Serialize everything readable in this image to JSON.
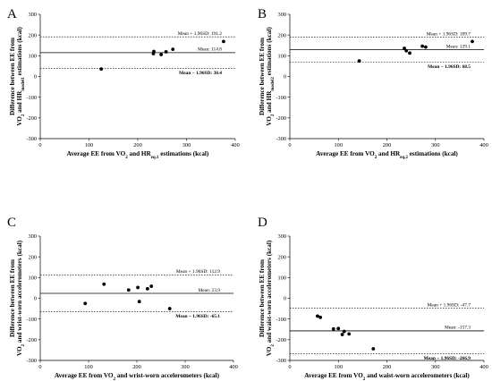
{
  "chart_data": [
    {
      "panel": "A",
      "type": "scatter",
      "xlabel": "Average EE from VO₂ and HRₑq.1 estimations (kcal)",
      "ylabel": "Difference between EE from VO₂ and HRmodel1 estimations (kcal)",
      "xlabel_parts": [
        {
          "t": "Average EE from VO"
        },
        {
          "t": "2",
          "sub": true
        },
        {
          "t": " and HR"
        },
        {
          "t": "eq.1",
          "sub": true
        },
        {
          "t": " estimations (kcal)"
        }
      ],
      "ylabel_lines": [
        [
          {
            "t": "Difference between EE from"
          }
        ],
        [
          {
            "t": "VO"
          },
          {
            "t": "2",
            "sub": true
          },
          {
            "t": " and HR"
          },
          {
            "t": "model1",
            "sub": true
          },
          {
            "t": " estimations (kcal)"
          }
        ]
      ],
      "xlim": [
        0,
        400
      ],
      "ylim": [
        -300,
        300
      ],
      "x_ticks": [
        0,
        100,
        200,
        300,
        400
      ],
      "y_ticks": [
        -300,
        -200,
        -100,
        0,
        100,
        200,
        300
      ],
      "points": [
        {
          "x": 125,
          "y": 36
        },
        {
          "x": 232,
          "y": 110
        },
        {
          "x": 233,
          "y": 121
        },
        {
          "x": 248,
          "y": 106
        },
        {
          "x": 258,
          "y": 119
        },
        {
          "x": 272,
          "y": 131
        },
        {
          "x": 376,
          "y": 169
        }
      ],
      "lines": [
        {
          "kind": "upper",
          "value": 191.2,
          "style": "dashed",
          "label": "Mean + 1.96SD: 191.2",
          "bold": false
        },
        {
          "kind": "mean",
          "value": 114.8,
          "style": "solid",
          "label": "Mean: 114.8",
          "bold": false
        },
        {
          "kind": "lower",
          "value": 38.4,
          "style": "dashed",
          "label": "Mean − 1.96SD: 38.4",
          "bold": true
        }
      ]
    },
    {
      "panel": "B",
      "type": "scatter",
      "xlabel": "Average EE from VO₂ and HRₑq.2 estimations (kcal)",
      "ylabel": "Difference between EE from VO₂ and HRmodel2 estimations (kcal)",
      "xlabel_parts": [
        {
          "t": "Average EE from VO"
        },
        {
          "t": "2",
          "sub": true
        },
        {
          "t": " and HR"
        },
        {
          "t": "eq.2",
          "sub": true
        },
        {
          "t": " estimations (kcal)"
        }
      ],
      "ylabel_lines": [
        [
          {
            "t": "Difference between EE from"
          }
        ],
        [
          {
            "t": "VO"
          },
          {
            "t": "2",
            "sub": true
          },
          {
            "t": " and HR"
          },
          {
            "t": "model2",
            "sub": true
          },
          {
            "t": " estimations (kcal)"
          }
        ]
      ],
      "xlim": [
        0,
        400
      ],
      "ylim": [
        -300,
        300
      ],
      "x_ticks": [
        0,
        100,
        200,
        300,
        400
      ],
      "y_ticks": [
        -300,
        -200,
        -100,
        0,
        100,
        200,
        300
      ],
      "points": [
        {
          "x": 143,
          "y": 75
        },
        {
          "x": 236,
          "y": 136
        },
        {
          "x": 240,
          "y": 124
        },
        {
          "x": 247,
          "y": 113
        },
        {
          "x": 273,
          "y": 146
        },
        {
          "x": 280,
          "y": 142
        },
        {
          "x": 376,
          "y": 169
        }
      ],
      "lines": [
        {
          "kind": "upper",
          "value": 189.7,
          "style": "dashed",
          "label": "Mean + 1.96SD: 189.7",
          "bold": false
        },
        {
          "kind": "mean",
          "value": 129.1,
          "style": "solid",
          "label": "Mean: 129.1",
          "bold": false
        },
        {
          "kind": "lower",
          "value": 68.5,
          "style": "dashed",
          "label": "Mean − 1.96SD: 68.5",
          "bold": true
        }
      ]
    },
    {
      "panel": "C",
      "type": "scatter",
      "xlabel": "Average EE from VO₂ and wrist-worn accelerometers (kcal)",
      "ylabel": "Difference between EE from VO₂ and wrist-worn accelerometers (kcal)",
      "xlabel_parts": [
        {
          "t": "Average EE from VO"
        },
        {
          "t": "2",
          "sub": true
        },
        {
          "t": " and wrist-worn accelerometers (kcal)"
        }
      ],
      "ylabel_lines": [
        [
          {
            "t": "Difference between EE from"
          }
        ],
        [
          {
            "t": "VO"
          },
          {
            "t": "2",
            "sub": true
          },
          {
            "t": " and wrist-worn accelerometers (kcal)"
          }
        ]
      ],
      "xlim": [
        0,
        400
      ],
      "ylim": [
        -300,
        300
      ],
      "x_ticks": [
        0,
        100,
        200,
        300,
        400
      ],
      "y_ticks": [
        -300,
        -200,
        -100,
        0,
        100,
        200,
        300
      ],
      "points": [
        {
          "x": 93,
          "y": -25
        },
        {
          "x": 132,
          "y": 68
        },
        {
          "x": 183,
          "y": 40
        },
        {
          "x": 202,
          "y": 52
        },
        {
          "x": 205,
          "y": -16
        },
        {
          "x": 222,
          "y": 46
        },
        {
          "x": 230,
          "y": 58
        },
        {
          "x": 268,
          "y": -50
        }
      ],
      "lines": [
        {
          "kind": "upper",
          "value": 112.9,
          "style": "dashed",
          "label": "Mean + 1.96SD: 112.9",
          "bold": false
        },
        {
          "kind": "mean",
          "value": 23.9,
          "style": "solid",
          "label": "Mean: 23.9",
          "bold": false
        },
        {
          "kind": "lower",
          "value": -65.1,
          "style": "dashed",
          "label": "Mean − 1.96SD: -65.1",
          "bold": true
        }
      ]
    },
    {
      "panel": "D",
      "type": "scatter",
      "xlabel": "Average EE from VO₂ and waist-worn accelerometers (kcal)",
      "ylabel": "Difference between EE from VO₂ and waist-worn accelerometers (kcal)",
      "xlabel_parts": [
        {
          "t": "Average EE from VO"
        },
        {
          "t": "2",
          "sub": true
        },
        {
          "t": " and waist-worn accelerometers (kcal)"
        }
      ],
      "ylabel_lines": [
        [
          {
            "t": "Difference between EE from"
          }
        ],
        [
          {
            "t": "VO"
          },
          {
            "t": "2",
            "sub": true
          },
          {
            "t": " and waist-worn accelerometers (kcal)"
          }
        ]
      ],
      "xlim": [
        0,
        400
      ],
      "ylim": [
        -300,
        300
      ],
      "x_ticks": [
        0,
        100,
        200,
        300,
        400
      ],
      "y_ticks": [
        -300,
        -200,
        -100,
        0,
        100,
        200,
        300
      ],
      "points": [
        {
          "x": 57,
          "y": -86
        },
        {
          "x": 63,
          "y": -92
        },
        {
          "x": 90,
          "y": -148
        },
        {
          "x": 100,
          "y": -146
        },
        {
          "x": 108,
          "y": -175
        },
        {
          "x": 112,
          "y": -160
        },
        {
          "x": 122,
          "y": -172
        },
        {
          "x": 172,
          "y": -244
        }
      ],
      "lines": [
        {
          "kind": "upper",
          "value": -47.7,
          "style": "dashed",
          "label": "Mean + 1.96SD: -47.7",
          "bold": false
        },
        {
          "kind": "mean",
          "value": -157.3,
          "style": "solid",
          "label": "Mean: -157.3",
          "bold": false
        },
        {
          "kind": "lower",
          "value": -266.9,
          "style": "dashed",
          "label": "Mean − 1.96SD: -266.9",
          "bold": true
        }
      ]
    }
  ]
}
